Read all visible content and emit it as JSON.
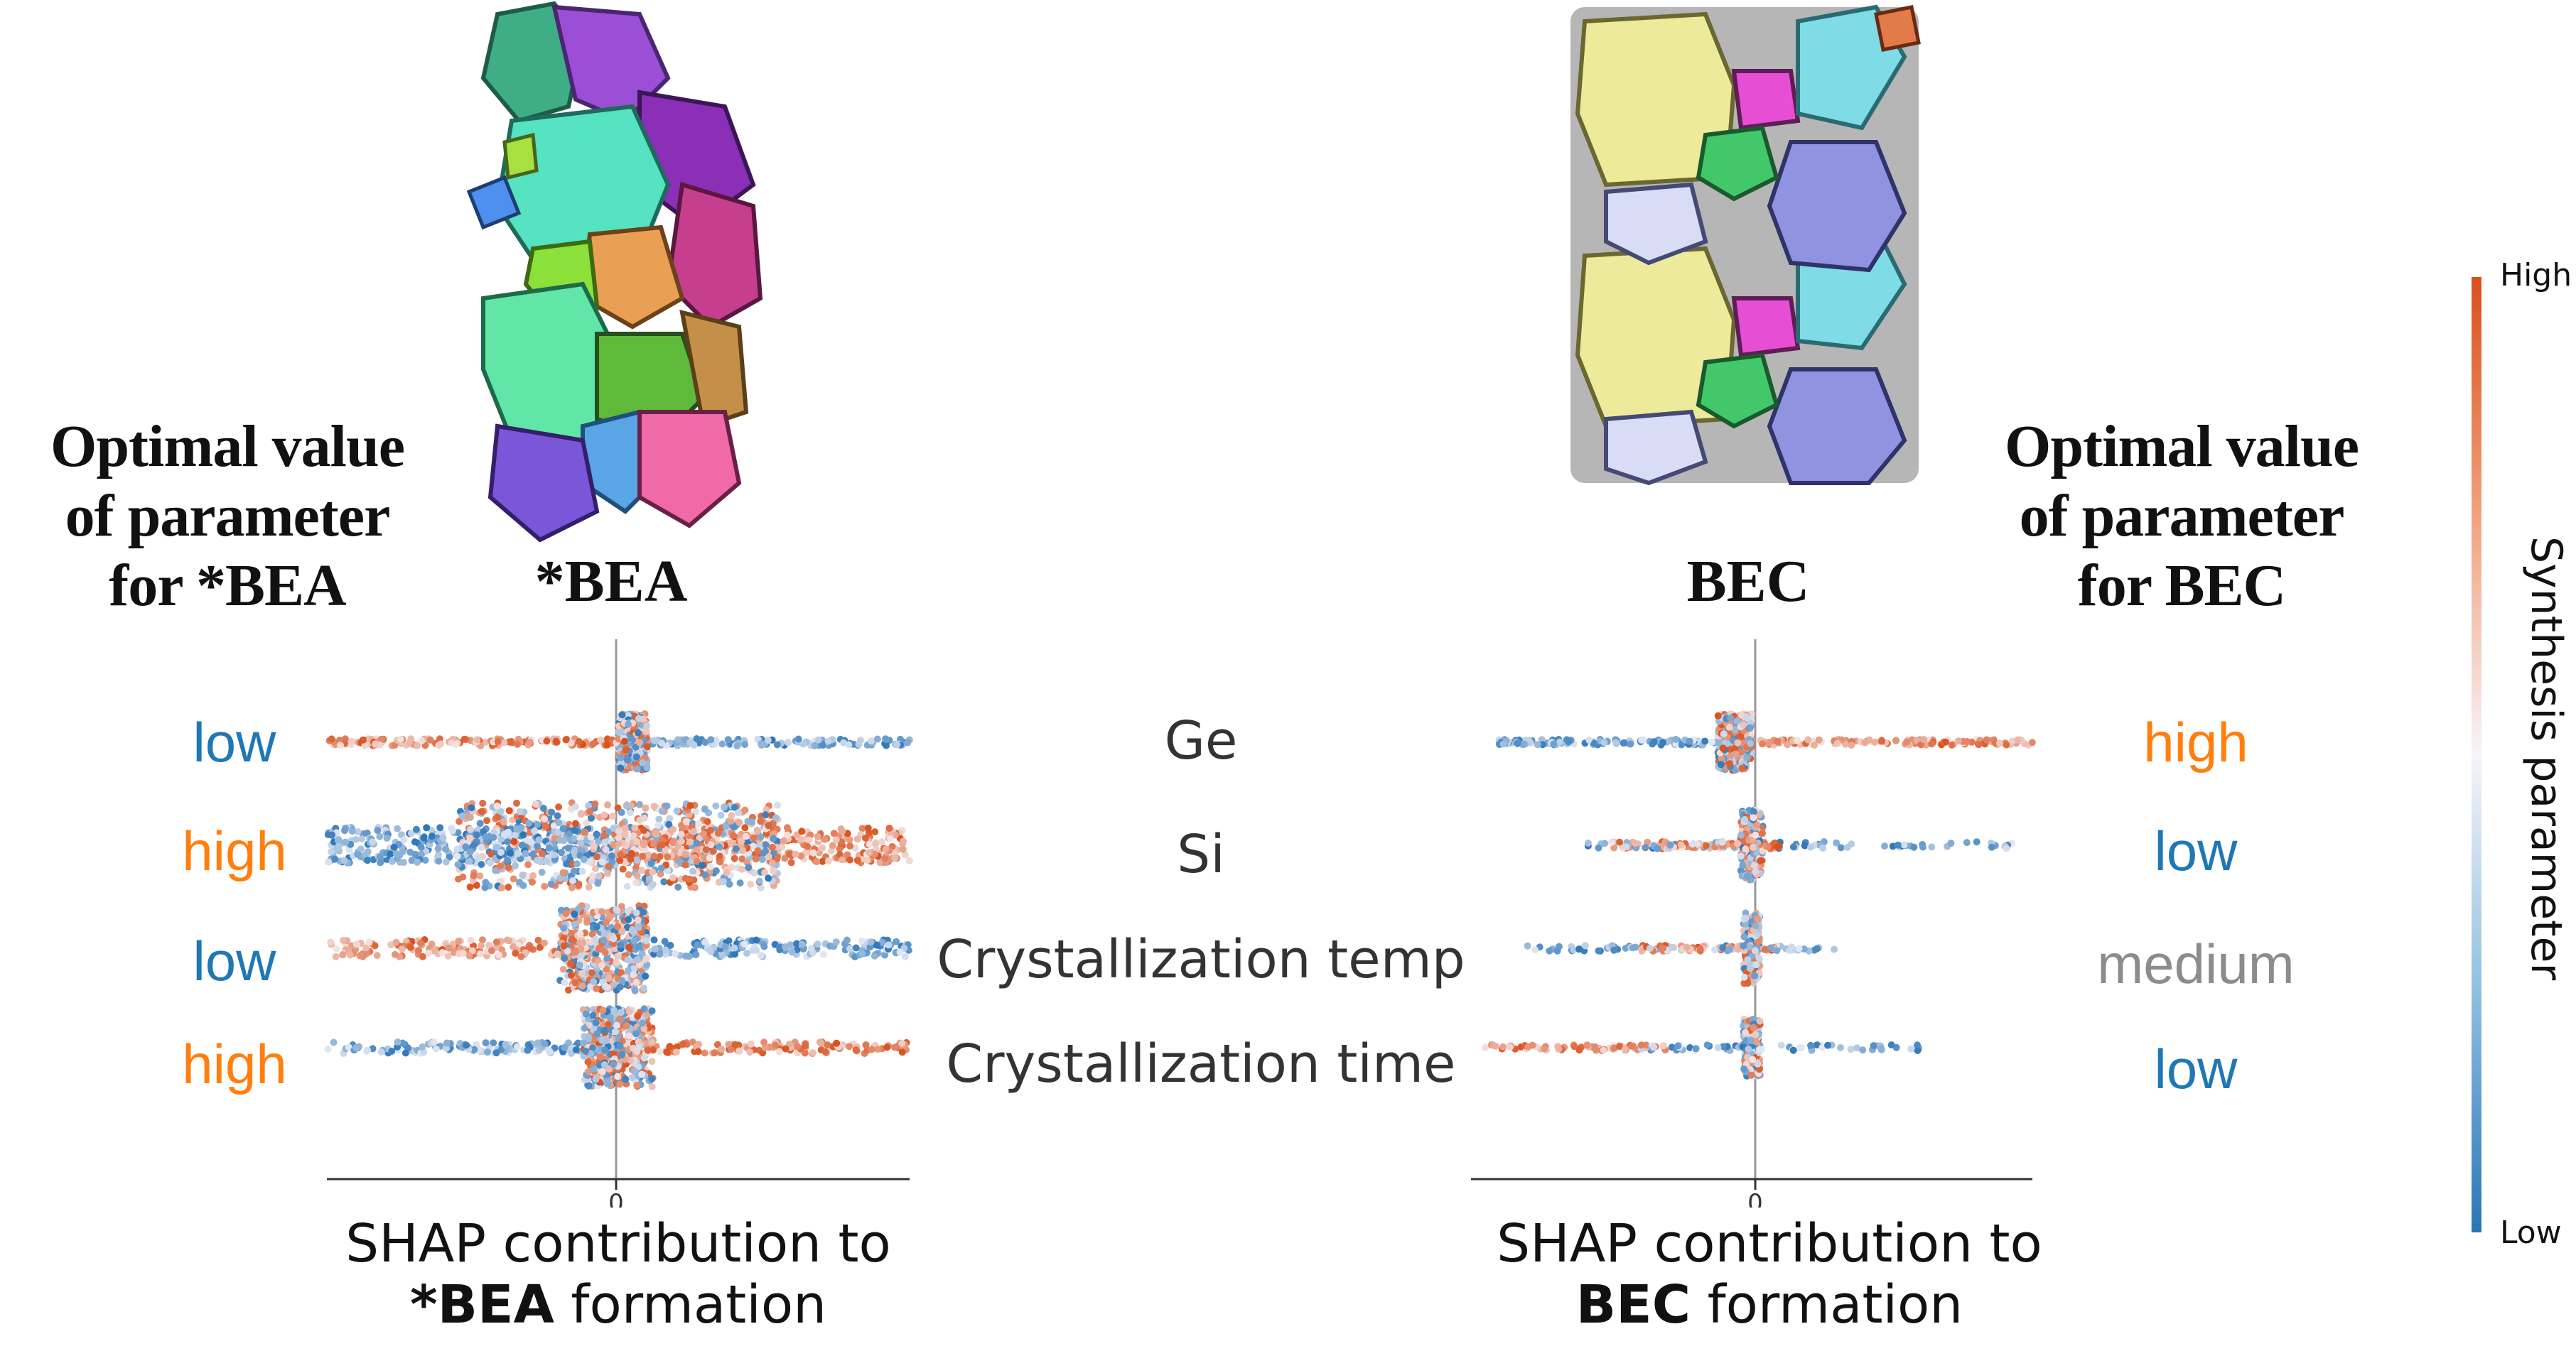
{
  "left_panel": {
    "heading_lines": [
      "Optimal value",
      "of parameter",
      "for *BEA"
    ],
    "zeolite_label": "*BEA",
    "optimal_values": [
      {
        "text": "low",
        "color": "#1f77b4"
      },
      {
        "text": "high",
        "color": "#ff7f0e"
      },
      {
        "text": "low",
        "color": "#1f77b4"
      },
      {
        "text": "high",
        "color": "#ff7f0e"
      }
    ],
    "xlabel_line1": "SHAP contribution to",
    "xlabel_bold": "*BEA",
    "xlabel_rest": " formation"
  },
  "right_panel": {
    "heading_lines": [
      "Optimal value",
      "of parameter",
      "for BEC"
    ],
    "zeolite_label": "BEC",
    "optimal_values": [
      {
        "text": "high",
        "color": "#ff7f0e"
      },
      {
        "text": "low",
        "color": "#1f77b4"
      },
      {
        "text": "medium",
        "color": "#8c8c8c"
      },
      {
        "text": "low",
        "color": "#1f77b4"
      }
    ],
    "xlabel_line1": "SHAP contribution to",
    "xlabel_bold": "BEC",
    "xlabel_rest": " formation"
  },
  "features": [
    "Ge",
    "Si",
    "Crystallization temp",
    "Crystallization time"
  ],
  "colorbar": {
    "title": "Synthesis parameter",
    "high_label": "High",
    "low_label": "Low",
    "high_color": "#d9501c",
    "mid_color": "#f7f4f9",
    "low_color": "#2b75b8"
  },
  "chart_data": [
    {
      "type": "scatter",
      "subtype": "shap-beeswarm",
      "xlabel": "SHAP contribution to *BEA formation",
      "xtick_labels": [
        "0"
      ],
      "features": [
        "Ge",
        "Si",
        "Crystallization temp",
        "Crystallization time"
      ],
      "xlim": [
        -1.0,
        1.0
      ],
      "series": [
        {
          "name": "Ge",
          "low_value_range": [
            0.0,
            1.0
          ],
          "high_value_range": [
            -1.0,
            0.0
          ],
          "core_range": [
            0.0,
            0.1
          ]
        },
        {
          "name": "Si",
          "low_value_range": [
            -1.0,
            0.0
          ],
          "high_value_range": [
            0.0,
            1.0
          ],
          "core_range": [
            -0.55,
            0.55
          ]
        },
        {
          "name": "Crystallization temp",
          "low_value_range": [
            0.0,
            1.0
          ],
          "high_value_range": [
            -1.0,
            0.0
          ],
          "core_range": [
            -0.2,
            0.1
          ]
        },
        {
          "name": "Crystallization time",
          "low_value_range": [
            -1.0,
            0.0
          ],
          "high_value_range": [
            0.0,
            1.0
          ],
          "core_range": [
            -0.12,
            0.12
          ]
        }
      ]
    },
    {
      "type": "scatter",
      "subtype": "shap-beeswarm",
      "xlabel": "SHAP contribution to BEC formation",
      "xtick_labels": [
        "0"
      ],
      "features": [
        "Ge",
        "Si",
        "Crystallization temp",
        "Crystallization time"
      ],
      "xlim": [
        -1.0,
        1.0
      ],
      "series": [
        {
          "name": "Ge",
          "low_value_range": [
            -0.9,
            0.0
          ],
          "high_value_range": [
            0.0,
            1.0
          ],
          "core_range": [
            -0.12,
            0.0
          ]
        },
        {
          "name": "Si",
          "low_value_range": [
            -0.6,
            0.95
          ],
          "high_value_range": [
            -0.5,
            0.1
          ],
          "core_range": [
            -0.04,
            0.04
          ]
        },
        {
          "name": "Crystallization temp",
          "low_value_range": [
            -0.8,
            0.3
          ],
          "high_value_range": [
            -0.4,
            0.1
          ],
          "core_range": [
            -0.03,
            0.03
          ]
        },
        {
          "name": "Crystallization time",
          "low_value_range": [
            -0.4,
            0.6
          ],
          "high_value_range": [
            -0.95,
            -0.3
          ],
          "core_range": [
            -0.03,
            0.03
          ]
        }
      ]
    }
  ]
}
